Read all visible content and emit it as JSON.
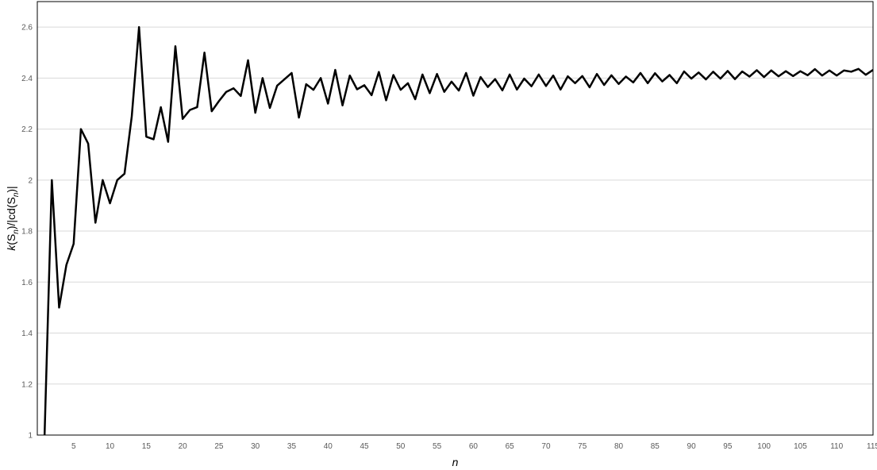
{
  "chart_data": {
    "type": "line",
    "title": "",
    "xlabel": "n",
    "ylabel": "k(S_n)/|cd(S_n)|",
    "ylabel_parts": {
      "k": "k",
      "open1": "(S",
      "sub1": "n",
      "close1": ")/|cd(S",
      "sub2": "n",
      "close2": ")|"
    },
    "xlim": [
      0,
      115
    ],
    "ylim": [
      1,
      2.7
    ],
    "grid": true,
    "x_ticks": [
      5,
      10,
      15,
      20,
      25,
      30,
      35,
      40,
      45,
      50,
      55,
      60,
      65,
      70,
      75,
      80,
      85,
      90,
      95,
      100,
      105,
      110,
      115
    ],
    "y_ticks": [
      1,
      1.2,
      1.4,
      1.6,
      1.8,
      2,
      2.2,
      2.4,
      2.6
    ],
    "x_tick_labels": [
      "5",
      "10",
      "15",
      "20",
      "25",
      "30",
      "35",
      "40",
      "45",
      "50",
      "55",
      "60",
      "65",
      "70",
      "75",
      "80",
      "85",
      "90",
      "95",
      "100",
      "105",
      "110",
      "115"
    ],
    "y_tick_labels": [
      "1",
      "1.2",
      "1.4",
      "1.6",
      "1.8",
      "2",
      "2.2",
      "2.4",
      "2.6"
    ],
    "line_color": "#000000",
    "series": [
      {
        "x": [
          1,
          2,
          3,
          4,
          5,
          6,
          7,
          8,
          9,
          10,
          11,
          12,
          13,
          14,
          15,
          16,
          17,
          18,
          19,
          20,
          21,
          22,
          23,
          24,
          25,
          26,
          27,
          28,
          29,
          30,
          31,
          32,
          33,
          34,
          35,
          36,
          37,
          38,
          39,
          40,
          41,
          42,
          43,
          44,
          45,
          46,
          47,
          48,
          49,
          50,
          51,
          52,
          53,
          54,
          55,
          56,
          57,
          58,
          59,
          60,
          61,
          62,
          63,
          64,
          65,
          66,
          67,
          68,
          69,
          70,
          71,
          72,
          73,
          74,
          75,
          76,
          77,
          78,
          79,
          80,
          81,
          82,
          83,
          84,
          85,
          86,
          87,
          88,
          89,
          90,
          91,
          92,
          93,
          94,
          95,
          96,
          97,
          98,
          99,
          100,
          101,
          102,
          103,
          104,
          105,
          106,
          107,
          108,
          109,
          110,
          111,
          112,
          113,
          114,
          115
        ],
        "values": [
          1.0,
          2.0,
          1.5,
          1.667,
          1.75,
          2.2,
          2.143,
          1.833,
          2.0,
          1.909,
          2.0,
          2.025,
          2.25,
          2.6,
          2.17,
          2.16,
          2.286,
          2.15,
          2.525,
          2.24,
          2.275,
          2.286,
          2.5,
          2.27,
          2.31,
          2.346,
          2.36,
          2.33,
          2.47,
          2.264,
          2.4,
          2.283,
          2.37,
          2.395,
          2.42,
          2.245,
          2.376,
          2.354,
          2.4,
          2.3,
          2.432,
          2.293,
          2.41,
          2.356,
          2.372,
          2.333,
          2.424,
          2.313,
          2.412,
          2.354,
          2.38,
          2.317,
          2.414,
          2.341,
          2.416,
          2.346,
          2.386,
          2.351,
          2.42,
          2.331,
          2.404,
          2.365,
          2.396,
          2.352,
          2.414,
          2.355,
          2.398,
          2.368,
          2.414,
          2.369,
          2.41,
          2.355,
          2.407,
          2.38,
          2.408,
          2.364,
          2.416,
          2.373,
          2.411,
          2.377,
          2.406,
          2.383,
          2.42,
          2.38,
          2.419,
          2.387,
          2.412,
          2.38,
          2.426,
          2.398,
          2.422,
          2.395,
          2.425,
          2.398,
          2.428,
          2.396,
          2.426,
          2.406,
          2.431,
          2.404,
          2.43,
          2.407,
          2.427,
          2.408,
          2.427,
          2.411,
          2.435,
          2.41,
          2.43,
          2.41,
          2.43,
          2.425,
          2.436,
          2.413,
          2.432
        ]
      }
    ]
  }
}
